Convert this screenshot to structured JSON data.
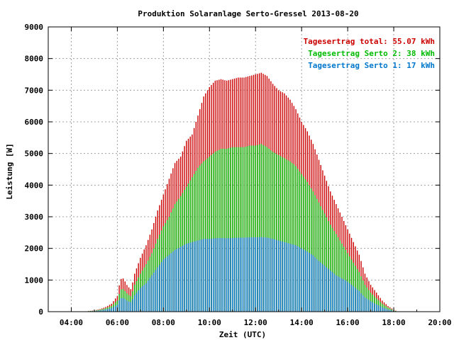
{
  "chart_data": {
    "type": "bar",
    "title": "Produktion Solaranlage Serto-Gressel 2013-08-20",
    "xlabel": "Zeit (UTC)",
    "ylabel": "Leistung [W]",
    "xlim": [
      3.0,
      20.0
    ],
    "ylim": [
      0,
      9000
    ],
    "x_tick_labels": [
      "04:00",
      "06:00",
      "08:00",
      "10:00",
      "12:00",
      "14:00",
      "16:00",
      "18:00",
      "20:00"
    ],
    "x_tick_values": [
      4,
      6,
      8,
      10,
      12,
      14,
      16,
      18,
      20
    ],
    "y_tick_values": [
      0,
      1000,
      2000,
      3000,
      4000,
      5000,
      6000,
      7000,
      8000,
      9000
    ],
    "grid": true,
    "legend_position": "top-right",
    "time_step_minutes": 5,
    "series": [
      {
        "name": "Tagesertrag total: 55.07 kWh",
        "color": "#cc0000",
        "points": [
          [
            4.75,
            20
          ],
          [
            5.0,
            40
          ],
          [
            5.25,
            80
          ],
          [
            5.5,
            150
          ],
          [
            5.75,
            250
          ],
          [
            6.0,
            500
          ],
          [
            6.1,
            900
          ],
          [
            6.2,
            1100
          ],
          [
            6.3,
            1000
          ],
          [
            6.45,
            800
          ],
          [
            6.6,
            700
          ],
          [
            6.75,
            1200
          ],
          [
            7.0,
            1700
          ],
          [
            7.25,
            2100
          ],
          [
            7.5,
            2600
          ],
          [
            7.75,
            3200
          ],
          [
            8.0,
            3700
          ],
          [
            8.25,
            4200
          ],
          [
            8.5,
            4700
          ],
          [
            8.75,
            4900
          ],
          [
            9.0,
            5400
          ],
          [
            9.25,
            5600
          ],
          [
            9.5,
            6200
          ],
          [
            9.75,
            6800
          ],
          [
            10.0,
            7100
          ],
          [
            10.25,
            7300
          ],
          [
            10.5,
            7350
          ],
          [
            10.75,
            7300
          ],
          [
            11.0,
            7350
          ],
          [
            11.25,
            7400
          ],
          [
            11.5,
            7400
          ],
          [
            11.75,
            7450
          ],
          [
            12.0,
            7500
          ],
          [
            12.25,
            7550
          ],
          [
            12.5,
            7450
          ],
          [
            12.75,
            7200
          ],
          [
            13.0,
            7000
          ],
          [
            13.25,
            6900
          ],
          [
            13.5,
            6700
          ],
          [
            13.75,
            6400
          ],
          [
            14.0,
            6000
          ],
          [
            14.25,
            5700
          ],
          [
            14.5,
            5300
          ],
          [
            14.75,
            4800
          ],
          [
            15.0,
            4300
          ],
          [
            15.25,
            3800
          ],
          [
            15.5,
            3400
          ],
          [
            15.75,
            3000
          ],
          [
            16.0,
            2600
          ],
          [
            16.25,
            2200
          ],
          [
            16.5,
            1800
          ],
          [
            16.75,
            1200
          ],
          [
            17.0,
            850
          ],
          [
            17.25,
            600
          ],
          [
            17.5,
            350
          ],
          [
            17.75,
            180
          ],
          [
            18.0,
            60
          ],
          [
            18.15,
            10
          ]
        ]
      },
      {
        "name": "Tagesertrag Serto 2: 38 kWh",
        "color": "#00bb00",
        "points": [
          [
            4.75,
            15
          ],
          [
            5.0,
            30
          ],
          [
            5.25,
            60
          ],
          [
            5.5,
            110
          ],
          [
            5.75,
            180
          ],
          [
            6.0,
            350
          ],
          [
            6.1,
            600
          ],
          [
            6.2,
            750
          ],
          [
            6.3,
            680
          ],
          [
            6.45,
            550
          ],
          [
            6.6,
            480
          ],
          [
            6.75,
            850
          ],
          [
            7.0,
            1200
          ],
          [
            7.25,
            1500
          ],
          [
            7.5,
            1850
          ],
          [
            7.75,
            2300
          ],
          [
            8.0,
            2700
          ],
          [
            8.25,
            3000
          ],
          [
            8.5,
            3400
          ],
          [
            8.75,
            3650
          ],
          [
            9.0,
            3950
          ],
          [
            9.25,
            4250
          ],
          [
            9.5,
            4550
          ],
          [
            9.75,
            4750
          ],
          [
            10.0,
            4900
          ],
          [
            10.25,
            5050
          ],
          [
            10.5,
            5150
          ],
          [
            10.75,
            5150
          ],
          [
            11.0,
            5200
          ],
          [
            11.25,
            5200
          ],
          [
            11.5,
            5200
          ],
          [
            11.75,
            5250
          ],
          [
            12.0,
            5250
          ],
          [
            12.25,
            5300
          ],
          [
            12.5,
            5200
          ],
          [
            12.75,
            5050
          ],
          [
            13.0,
            4950
          ],
          [
            13.25,
            4850
          ],
          [
            13.5,
            4750
          ],
          [
            13.75,
            4600
          ],
          [
            14.0,
            4350
          ],
          [
            14.25,
            4100
          ],
          [
            14.5,
            3800
          ],
          [
            14.75,
            3450
          ],
          [
            15.0,
            3100
          ],
          [
            15.25,
            2750
          ],
          [
            15.5,
            2450
          ],
          [
            15.75,
            2150
          ],
          [
            16.0,
            1850
          ],
          [
            16.25,
            1550
          ],
          [
            16.5,
            1250
          ],
          [
            16.75,
            850
          ],
          [
            17.0,
            600
          ],
          [
            17.25,
            420
          ],
          [
            17.5,
            250
          ],
          [
            17.75,
            130
          ],
          [
            18.0,
            40
          ],
          [
            18.15,
            5
          ]
        ]
      },
      {
        "name": "Tagesertrag Serto 1: 17 kWh",
        "color": "#0077cc",
        "points": [
          [
            4.75,
            10
          ],
          [
            5.0,
            20
          ],
          [
            5.25,
            40
          ],
          [
            5.5,
            70
          ],
          [
            5.75,
            120
          ],
          [
            6.0,
            220
          ],
          [
            6.1,
            380
          ],
          [
            6.2,
            450
          ],
          [
            6.3,
            420
          ],
          [
            6.45,
            330
          ],
          [
            6.6,
            300
          ],
          [
            6.75,
            520
          ],
          [
            7.0,
            750
          ],
          [
            7.25,
            900
          ],
          [
            7.5,
            1150
          ],
          [
            7.75,
            1400
          ],
          [
            8.0,
            1650
          ],
          [
            8.25,
            1800
          ],
          [
            8.5,
            1950
          ],
          [
            8.75,
            2050
          ],
          [
            9.0,
            2150
          ],
          [
            9.25,
            2200
          ],
          [
            9.5,
            2250
          ],
          [
            9.75,
            2300
          ],
          [
            10.0,
            2300
          ],
          [
            10.25,
            2320
          ],
          [
            10.5,
            2330
          ],
          [
            10.75,
            2320
          ],
          [
            11.0,
            2330
          ],
          [
            11.25,
            2340
          ],
          [
            11.5,
            2340
          ],
          [
            11.75,
            2350
          ],
          [
            12.0,
            2350
          ],
          [
            12.25,
            2360
          ],
          [
            12.5,
            2340
          ],
          [
            12.75,
            2300
          ],
          [
            13.0,
            2250
          ],
          [
            13.25,
            2200
          ],
          [
            13.5,
            2150
          ],
          [
            13.75,
            2100
          ],
          [
            14.0,
            2000
          ],
          [
            14.25,
            1900
          ],
          [
            14.5,
            1780
          ],
          [
            14.75,
            1600
          ],
          [
            15.0,
            1450
          ],
          [
            15.25,
            1300
          ],
          [
            15.5,
            1150
          ],
          [
            15.75,
            1050
          ],
          [
            16.0,
            950
          ],
          [
            16.25,
            800
          ],
          [
            16.5,
            650
          ],
          [
            16.75,
            450
          ],
          [
            17.0,
            330
          ],
          [
            17.25,
            230
          ],
          [
            17.5,
            140
          ],
          [
            17.75,
            70
          ],
          [
            18.0,
            20
          ],
          [
            18.15,
            3
          ]
        ]
      }
    ]
  }
}
